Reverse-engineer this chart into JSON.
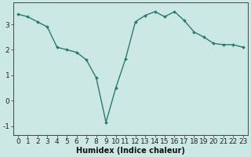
{
  "x": [
    0,
    1,
    2,
    3,
    4,
    5,
    6,
    7,
    8,
    9,
    10,
    11,
    12,
    13,
    14,
    15,
    16,
    17,
    18,
    19,
    20,
    21,
    22,
    23
  ],
  "y": [
    3.4,
    3.3,
    3.1,
    2.9,
    2.1,
    2.0,
    1.9,
    1.6,
    0.9,
    -0.85,
    0.5,
    1.65,
    3.1,
    3.35,
    3.5,
    3.3,
    3.5,
    3.15,
    2.7,
    2.5,
    2.25,
    2.2,
    2.2,
    2.1
  ],
  "line_color": "#2a7a6f",
  "marker": "D",
  "marker_size": 2.0,
  "xlabel": "Humidex (Indice chaleur)",
  "xlim": [
    -0.5,
    23.5
  ],
  "ylim": [
    -1.35,
    3.85
  ],
  "yticks": [
    -1,
    0,
    1,
    2,
    3
  ],
  "xticks": [
    0,
    1,
    2,
    3,
    4,
    5,
    6,
    7,
    8,
    9,
    10,
    11,
    12,
    13,
    14,
    15,
    16,
    17,
    18,
    19,
    20,
    21,
    22,
    23
  ],
  "grid_color": "#c8e8e0",
  "bg_color": "#cce8e4",
  "font_size": 6.5,
  "line_width": 1.0
}
